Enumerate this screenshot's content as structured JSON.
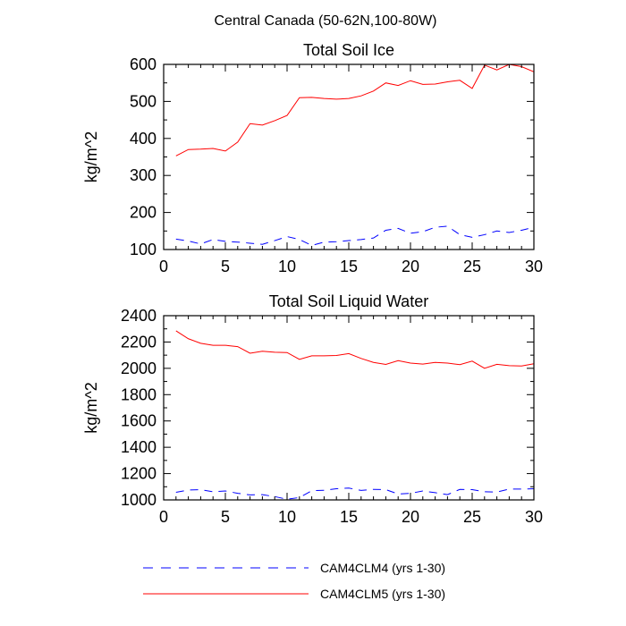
{
  "figure": {
    "title": "Central Canada (50-62N,100-80W)"
  },
  "legend": {
    "placement": "bottom",
    "entries": [
      {
        "label": "CAM4CLM4 (yrs 1-30)",
        "color": "#0000ff",
        "style": "dashed"
      },
      {
        "label": "CAM4CLM5 (yrs 1-30)",
        "color": "#ff0000",
        "style": "solid"
      }
    ]
  },
  "chart_data": [
    {
      "type": "line",
      "title": "Total Soil Ice",
      "xlabel": "",
      "ylabel": "kg/m^2",
      "xlim": [
        0,
        30
      ],
      "ylim": [
        100,
        600
      ],
      "xticks": [
        0,
        5,
        10,
        15,
        20,
        25,
        30
      ],
      "yticks": [
        100,
        200,
        300,
        400,
        500,
        600
      ],
      "grid": false,
      "x": [
        1,
        2,
        3,
        4,
        5,
        6,
        7,
        8,
        9,
        10,
        11,
        12,
        13,
        14,
        15,
        16,
        17,
        18,
        19,
        20,
        21,
        22,
        23,
        24,
        25,
        26,
        27,
        28,
        29,
        30
      ],
      "series": [
        {
          "name": "CAM4CLM4 (yrs 1-30)",
          "color": "#0000ff",
          "style": "dashed",
          "values": [
            128,
            123,
            115,
            127,
            122,
            120,
            117,
            114,
            124,
            135,
            127,
            111,
            120,
            121,
            124,
            127,
            131,
            152,
            157,
            144,
            148,
            160,
            163,
            140,
            133,
            140,
            150,
            146,
            152,
            160
          ]
        },
        {
          "name": "CAM4CLM5 (yrs 1-30)",
          "color": "#ff0000",
          "style": "solid",
          "values": [
            353,
            370,
            371,
            373,
            366,
            390,
            440,
            436,
            448,
            462,
            510,
            511,
            508,
            506,
            508,
            515,
            528,
            550,
            543,
            556,
            546,
            547,
            553,
            557,
            535,
            598,
            585,
            600,
            594,
            580
          ]
        }
      ]
    },
    {
      "type": "line",
      "title": "Total Soil Liquid Water",
      "xlabel": "",
      "ylabel": "kg/m^2",
      "xlim": [
        0,
        30
      ],
      "ylim": [
        1000,
        2400
      ],
      "xticks": [
        0,
        5,
        10,
        15,
        20,
        25,
        30
      ],
      "yticks": [
        1000,
        1200,
        1400,
        1600,
        1800,
        2000,
        2200,
        2400
      ],
      "grid": false,
      "x": [
        1,
        2,
        3,
        4,
        5,
        6,
        7,
        8,
        9,
        10,
        11,
        12,
        13,
        14,
        15,
        16,
        17,
        18,
        19,
        20,
        21,
        22,
        23,
        24,
        25,
        26,
        27,
        28,
        29,
        30
      ],
      "series": [
        {
          "name": "CAM4CLM4 (yrs 1-30)",
          "color": "#0000ff",
          "style": "dashed",
          "values": [
            1058,
            1075,
            1078,
            1062,
            1068,
            1050,
            1038,
            1040,
            1025,
            1005,
            1018,
            1070,
            1073,
            1085,
            1090,
            1072,
            1080,
            1078,
            1045,
            1050,
            1068,
            1055,
            1040,
            1080,
            1078,
            1062,
            1060,
            1082,
            1082,
            1085
          ]
        },
        {
          "name": "CAM4CLM5 (yrs 1-30)",
          "color": "#ff0000",
          "style": "solid",
          "values": [
            2285,
            2225,
            2190,
            2175,
            2175,
            2165,
            2115,
            2130,
            2122,
            2120,
            2068,
            2095,
            2095,
            2098,
            2112,
            2075,
            2045,
            2030,
            2058,
            2040,
            2032,
            2045,
            2040,
            2028,
            2055,
            2000,
            2030,
            2020,
            2018,
            2035
          ]
        }
      ]
    }
  ]
}
